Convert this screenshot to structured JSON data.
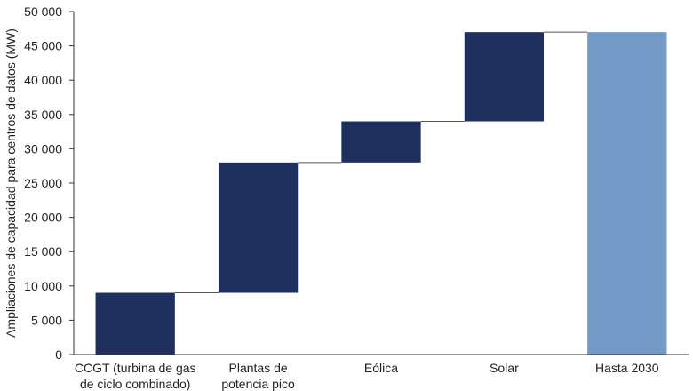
{
  "chart_data": {
    "type": "bar",
    "subtype": "waterfall",
    "ylabel": "Ampliaciones de capacidad para centros de datos (MW)",
    "ylim": [
      0,
      50000
    ],
    "yticks": [
      0,
      5000,
      10000,
      15000,
      20000,
      25000,
      30000,
      35000,
      40000,
      45000,
      50000
    ],
    "ytick_labels": [
      "0",
      "5 000",
      "10 000",
      "15 000",
      "20 000",
      "25 000",
      "30 000",
      "35 000",
      "40 000",
      "45 000",
      "50 000"
    ],
    "grid": false,
    "categories": [
      [
        "CCGT (turbina de gas",
        "de ciclo combinado)"
      ],
      [
        "Plantas de",
        "potencia pico"
      ],
      [
        "Eólica"
      ],
      [
        "Solar"
      ],
      [
        "Hasta 2030"
      ]
    ],
    "bars": [
      {
        "base": 0,
        "top": 9000,
        "kind": "increment"
      },
      {
        "base": 9000,
        "top": 28000,
        "kind": "increment"
      },
      {
        "base": 28000,
        "top": 34000,
        "kind": "increment"
      },
      {
        "base": 34000,
        "top": 47000,
        "kind": "increment"
      },
      {
        "base": 0,
        "top": 47000,
        "kind": "total"
      }
    ],
    "colors": {
      "increment": "#1f2f5e",
      "total": "#7399c6"
    }
  }
}
